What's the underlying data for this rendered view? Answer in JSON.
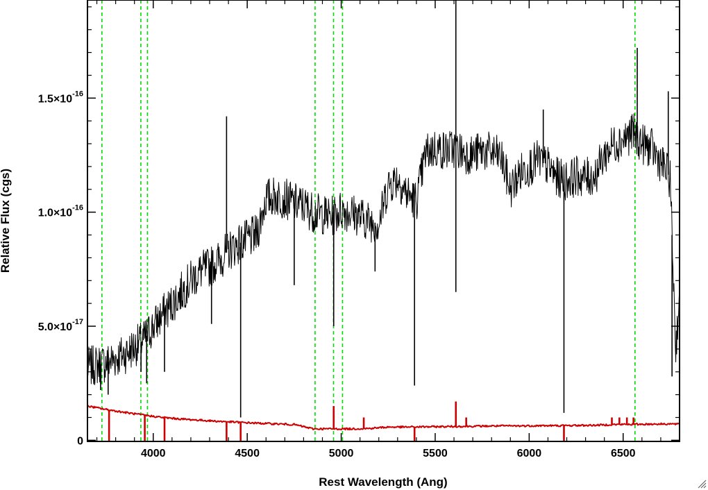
{
  "chart_data": {
    "type": "line",
    "title": "",
    "xlabel": "Rest Wavelength (Ang)",
    "ylabel": "Relative Flux (cgs)",
    "xlim": [
      3650,
      6800
    ],
    "ylim": [
      -5e-19,
      1.93e-16
    ],
    "x_ticks": [
      {
        "value": 4000,
        "label": "4000"
      },
      {
        "value": 4500,
        "label": "4500"
      },
      {
        "value": 5000,
        "label": "5000"
      },
      {
        "value": 5500,
        "label": "5500"
      },
      {
        "value": 6000,
        "label": "6000"
      },
      {
        "value": 6500,
        "label": "6500"
      }
    ],
    "y_ticks": [
      {
        "value": 0,
        "mant": "0",
        "exp": ""
      },
      {
        "value": 5e-17,
        "mant": "5.0×10",
        "exp": "-17"
      },
      {
        "value": 1e-16,
        "mant": "1.0×10",
        "exp": "-16"
      },
      {
        "value": 1.5e-16,
        "mant": "1.5×10",
        "exp": "-16"
      }
    ],
    "grid": false,
    "legend": "none",
    "series": [
      {
        "color": "#000000",
        "x": [
          3650,
          3700,
          3750,
          3800,
          3850,
          3900,
          3950,
          4000,
          4050,
          4100,
          4150,
          4200,
          4250,
          4300,
          4350,
          4400,
          4450,
          4500,
          4550,
          4600,
          4650,
          4700,
          4750,
          4800,
          4850,
          4900,
          4950,
          5000,
          5050,
          5100,
          5150,
          5200,
          5250,
          5300,
          5350,
          5400,
          5450,
          5500,
          5550,
          5600,
          5650,
          5700,
          5750,
          5800,
          5850,
          5900,
          5950,
          6000,
          6050,
          6100,
          6150,
          6200,
          6250,
          6300,
          6350,
          6400,
          6450,
          6500,
          6550,
          6600,
          6650,
          6700,
          6750,
          6780,
          6800
        ],
        "y": [
          3.2e-17,
          3.3e-17,
          3.4e-17,
          3.6e-17,
          3.8e-17,
          4.1e-17,
          4.4e-17,
          5e-17,
          5.5e-17,
          6e-17,
          6.5e-17,
          7e-17,
          7.4e-17,
          7.6e-17,
          7.9e-17,
          8.3e-17,
          8.6e-17,
          8.8e-17,
          9e-17,
          1.06e-16,
          1.07e-16,
          1.06e-16,
          1.04e-16,
          1.03e-16,
          1e-16,
          9.9e-17,
          9.8e-17,
          1.01e-16,
          1e-16,
          9.8e-17,
          9.6e-17,
          9.5e-17,
          1.12e-16,
          1.15e-16,
          1.08e-16,
          1.05e-16,
          1.26e-16,
          1.28e-16,
          1.27e-16,
          1.28e-16,
          1.26e-16,
          1.25e-16,
          1.27e-16,
          1.26e-16,
          1.24e-16,
          1.1e-16,
          1.17e-16,
          1.2e-16,
          1.23e-16,
          1.2e-16,
          1.15e-16,
          1.14e-16,
          1.16e-16,
          1.15e-16,
          1.16e-16,
          1.25e-16,
          1.3e-16,
          1.32e-16,
          1.35e-16,
          1.3e-16,
          1.28e-16,
          1.22e-16,
          1.15e-16,
          4e-17,
          6.5e-17
        ],
        "spikes": [
          {
            "x": 3720,
            "y": 2.2e-17
          },
          {
            "x": 3760,
            "y": 2e-17
          },
          {
            "x": 3935,
            "y": 3e-17
          },
          {
            "x": 3965,
            "y": 2.5e-17
          },
          {
            "x": 4060,
            "y": 3e-17
          },
          {
            "x": 4310,
            "y": 5.1e-17
          },
          {
            "x": 4390,
            "y": 1.42e-16
          },
          {
            "x": 4465,
            "y": 1e-17
          },
          {
            "x": 4750,
            "y": 6.8e-17
          },
          {
            "x": 4960,
            "y": 5e-17
          },
          {
            "x": 5180,
            "y": 7.4e-17
          },
          {
            "x": 5390,
            "y": 2.4e-17
          },
          {
            "x": 5610,
            "y": 1.95e-16
          },
          {
            "x": 5610,
            "y": 6.5e-17
          },
          {
            "x": 6075,
            "y": 1.45e-16
          },
          {
            "x": 6185,
            "y": 1.2e-17
          },
          {
            "x": 6575,
            "y": 1.72e-16
          },
          {
            "x": 6740,
            "y": 1.53e-16
          },
          {
            "x": 6760,
            "y": 2.8e-17
          }
        ]
      },
      {
        "color": "#cc0000",
        "x": [
          3650,
          3750,
          3850,
          3950,
          4050,
          4150,
          4250,
          4350,
          4450,
          4550,
          4650,
          4750,
          4850,
          4950,
          5050,
          5150,
          5250,
          5350,
          5450,
          5550,
          5650,
          5750,
          5850,
          5950,
          6050,
          6150,
          6250,
          6350,
          6450,
          6550,
          6650,
          6750,
          6800
        ],
        "y": [
          1.5e-17,
          1.35e-17,
          1.22e-17,
          1.1e-17,
          1e-17,
          9.3e-18,
          8.8e-18,
          8.3e-18,
          7.9e-18,
          7.5e-18,
          7.2e-18,
          6.9e-18,
          5e-18,
          5e-18,
          5e-18,
          5.2e-18,
          5.8e-18,
          5.8e-18,
          5.9e-18,
          6e-18,
          6.1e-18,
          6.2e-18,
          6.3e-18,
          6.3e-18,
          6.4e-18,
          6.4e-18,
          6.5e-18,
          6.6e-18,
          6.9e-18,
          7e-18,
          7.1e-18,
          7.2e-18,
          7e-18
        ],
        "spikes": [
          {
            "x": 3765,
            "y": -1e-18
          },
          {
            "x": 3955,
            "y": -1e-18
          },
          {
            "x": 4060,
            "y": -1e-18
          },
          {
            "x": 4390,
            "y": -1e-18
          },
          {
            "x": 4465,
            "y": -1e-18
          },
          {
            "x": 4960,
            "y": 1.5e-17
          },
          {
            "x": 5120,
            "y": 1e-17
          },
          {
            "x": 5390,
            "y": -1e-18
          },
          {
            "x": 5610,
            "y": 1.7e-17
          },
          {
            "x": 5665,
            "y": 1e-17
          },
          {
            "x": 6185,
            "y": -1e-18
          },
          {
            "x": 6440,
            "y": 1e-17
          },
          {
            "x": 6480,
            "y": 1e-17
          },
          {
            "x": 6520,
            "y": 1e-17
          },
          {
            "x": 6555,
            "y": 1e-17
          }
        ]
      }
    ],
    "vlines": {
      "color": "#00dd00",
      "style": "dashed",
      "x": [
        3727,
        3934,
        3969,
        4861,
        4959,
        5007,
        6563
      ]
    }
  },
  "colors": {
    "flux": "#000000",
    "error": "#cc0000",
    "lines": "#00dd00"
  },
  "icons": {
    "resize_grip": "resize-grip-icon"
  }
}
